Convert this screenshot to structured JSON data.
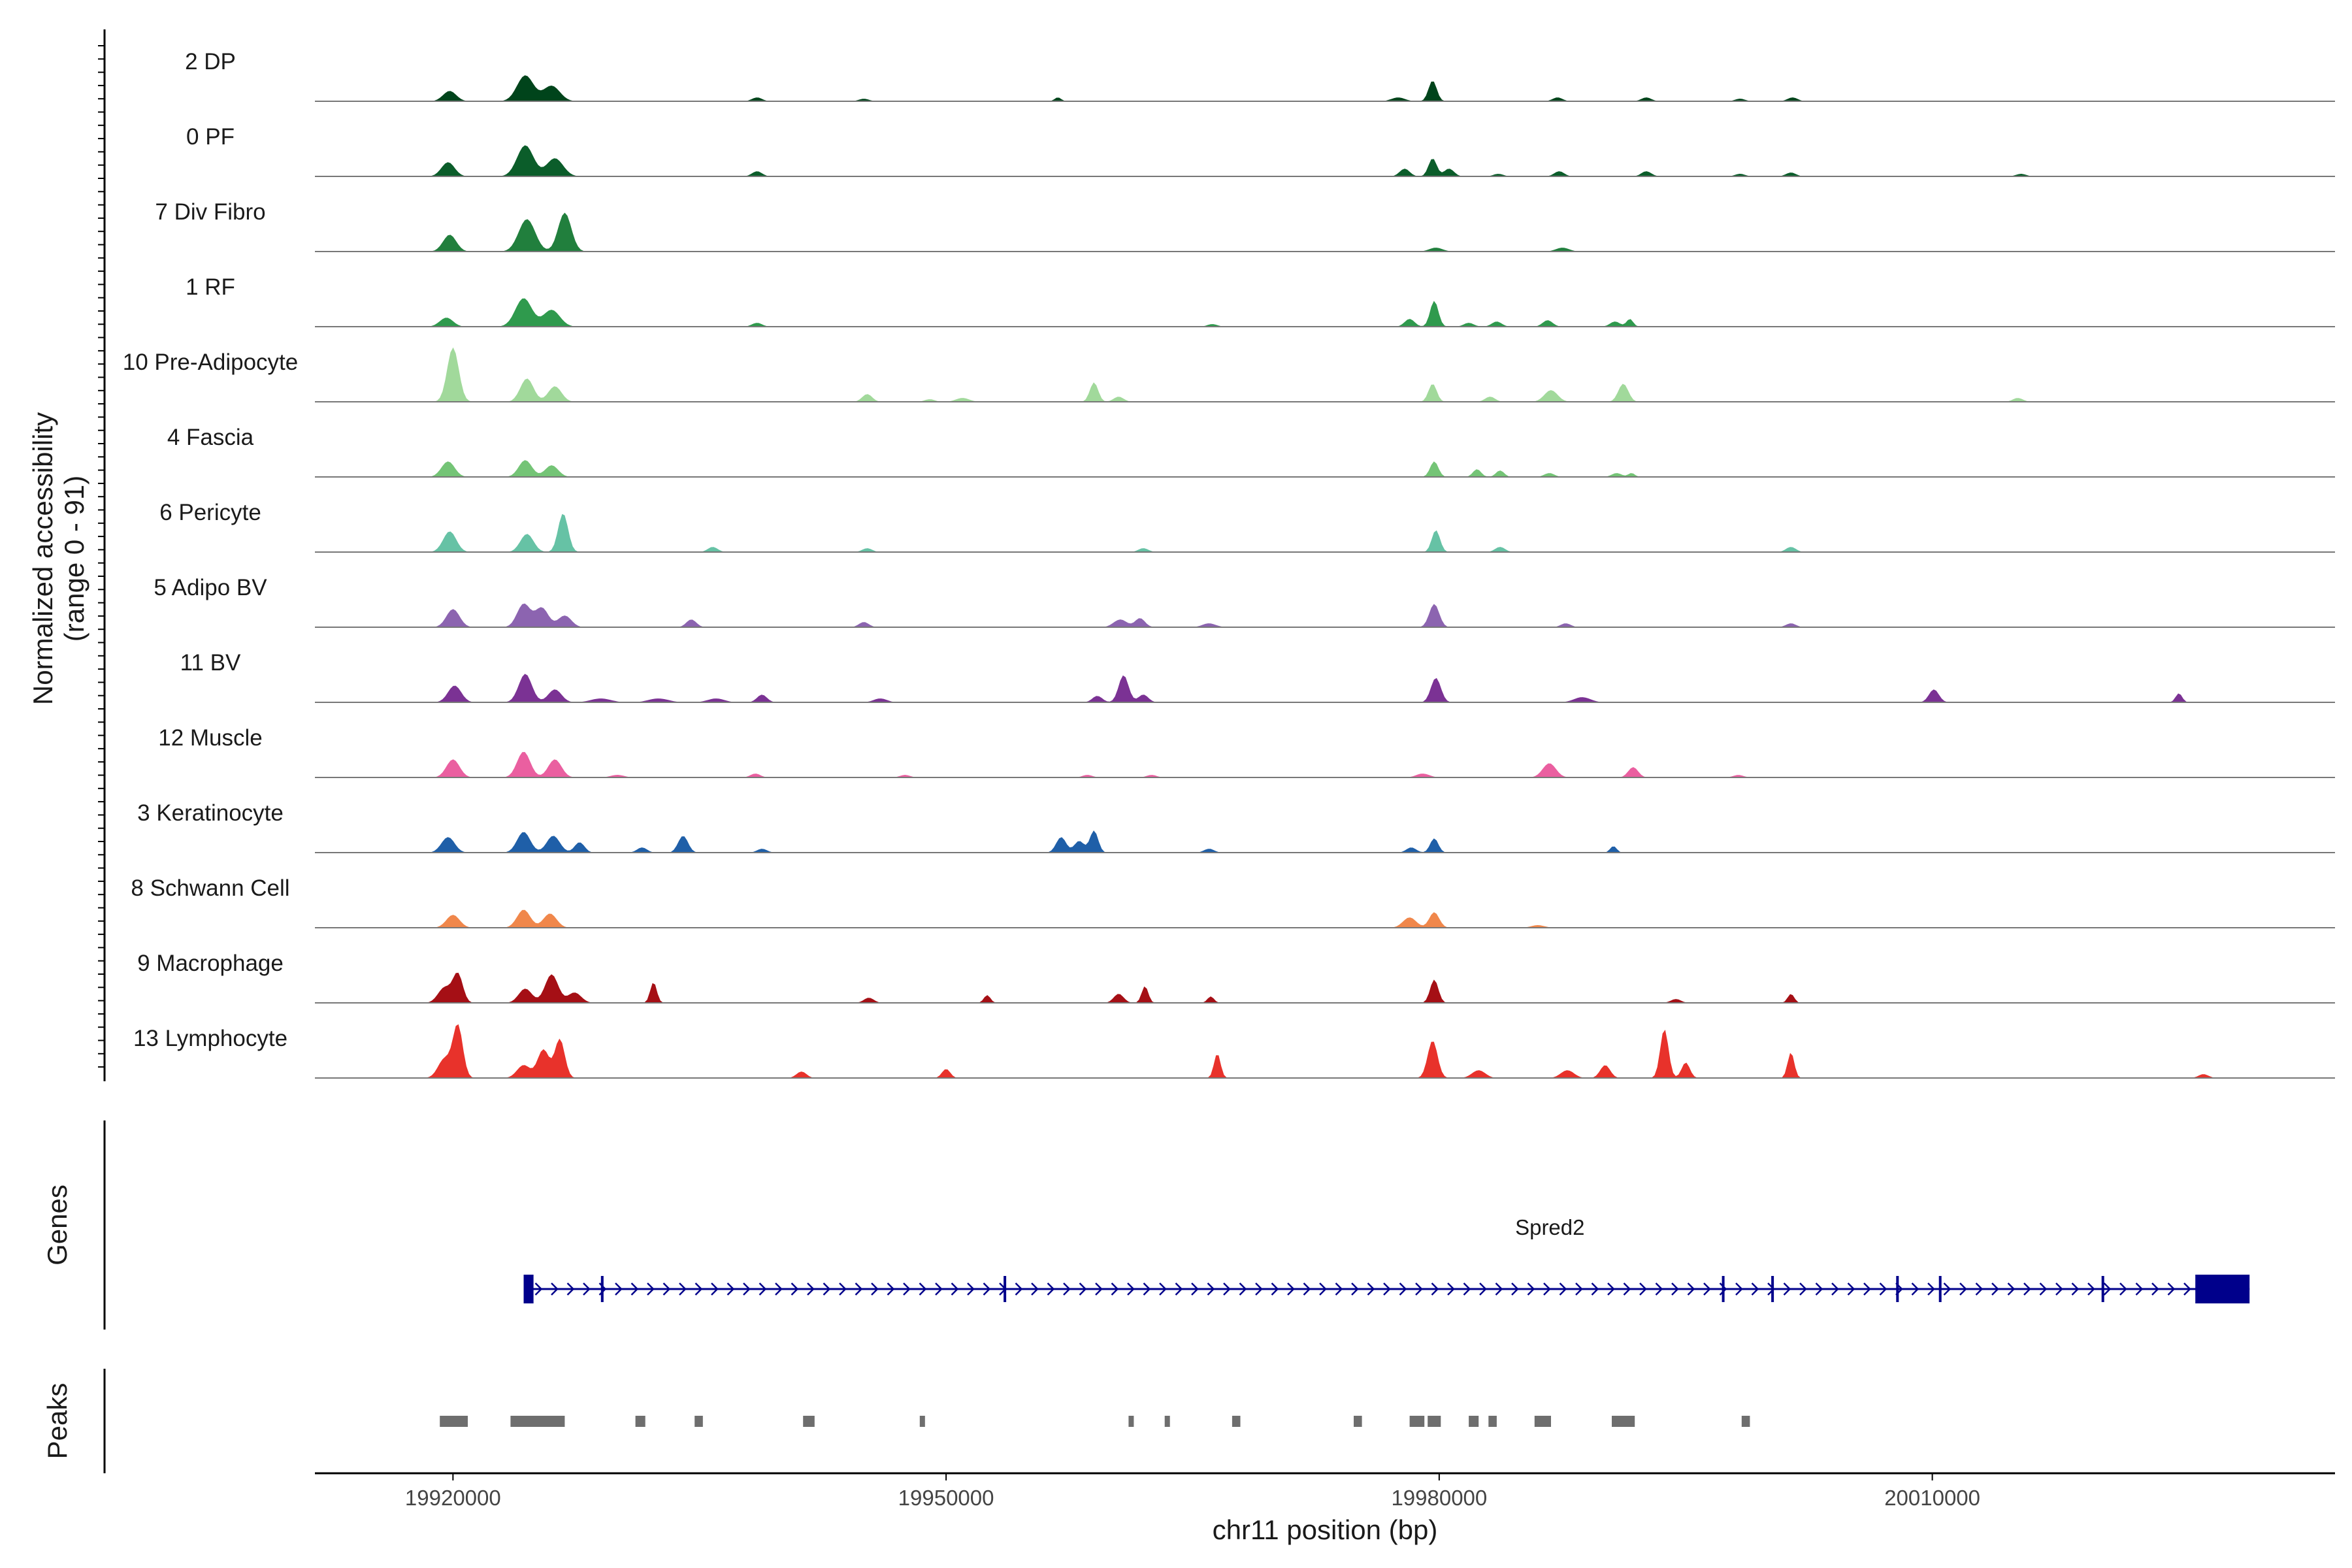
{
  "chart_data": {
    "type": "area",
    "ylabel": "Normalized accessibility",
    "ylabel_range": "(range 0 - 91)",
    "ylim": [
      0,
      91
    ],
    "xlabel": "chr11 position (bp)",
    "xlim": [
      19911600,
      20034500
    ],
    "x_ticks": [
      19920000,
      19950000,
      19980000,
      20010000
    ],
    "x_tick_labels": [
      "19920000",
      "19950000",
      "19980000",
      "20010000"
    ],
    "tracks": [
      {
        "name": "2 DP",
        "color": "#00441b",
        "peaks": [
          [
            19919800,
            8,
            400
          ],
          [
            19924400,
            20,
            500
          ],
          [
            19926000,
            12,
            500
          ],
          [
            19938500,
            3,
            300
          ],
          [
            19945000,
            2,
            300
          ],
          [
            19956800,
            3,
            200
          ],
          [
            19977500,
            3,
            400
          ],
          [
            19979600,
            16,
            250
          ],
          [
            19987200,
            3,
            300
          ],
          [
            19992600,
            3,
            300
          ],
          [
            19998300,
            2,
            300
          ],
          [
            20001500,
            3,
            300
          ]
        ]
      },
      {
        "name": "0 PF",
        "color": "#0b5d2a",
        "peaks": [
          [
            19919700,
            11,
            400
          ],
          [
            19924400,
            24,
            500
          ],
          [
            19926200,
            14,
            500
          ],
          [
            19938500,
            4,
            300
          ],
          [
            19977900,
            6,
            300
          ],
          [
            19979600,
            14,
            250
          ],
          [
            19980600,
            6,
            300
          ],
          [
            19983600,
            2,
            300
          ],
          [
            19987300,
            4,
            300
          ],
          [
            19992600,
            4,
            300
          ],
          [
            19998300,
            2,
            300
          ],
          [
            20001400,
            3,
            300
          ],
          [
            20015400,
            2,
            300
          ]
        ]
      },
      {
        "name": "7 Div Fibro",
        "color": "#217f3d",
        "peaks": [
          [
            19919800,
            13,
            400
          ],
          [
            19924500,
            25,
            500
          ],
          [
            19926800,
            30,
            400
          ],
          [
            19979800,
            3,
            400
          ],
          [
            19987500,
            3,
            400
          ]
        ]
      },
      {
        "name": "1 RF",
        "color": "#2f9a4d",
        "peaks": [
          [
            19919600,
            7,
            400
          ],
          [
            19924300,
            22,
            500
          ],
          [
            19926000,
            13,
            500
          ],
          [
            19938500,
            3,
            300
          ],
          [
            19966200,
            2,
            300
          ],
          [
            19978200,
            6,
            300
          ],
          [
            19979700,
            20,
            250
          ],
          [
            19981800,
            3,
            300
          ],
          [
            19983500,
            4,
            300
          ],
          [
            19986600,
            5,
            300
          ],
          [
            19990700,
            4,
            300
          ],
          [
            19991600,
            6,
            200
          ]
        ]
      },
      {
        "name": "10 Pre-Adipocyte",
        "color": "#a1d99b",
        "peaks": [
          [
            19920000,
            42,
            350
          ],
          [
            19924500,
            18,
            400
          ],
          [
            19926200,
            12,
            400
          ],
          [
            19945200,
            6,
            300
          ],
          [
            19949000,
            2,
            300
          ],
          [
            19951000,
            3,
            400
          ],
          [
            19959000,
            15,
            250
          ],
          [
            19960500,
            4,
            300
          ],
          [
            19979600,
            14,
            250
          ],
          [
            19983100,
            4,
            300
          ],
          [
            19986800,
            9,
            400
          ],
          [
            19991200,
            14,
            300
          ],
          [
            20015200,
            3,
            300
          ]
        ]
      },
      {
        "name": "4 Fascia",
        "color": "#74c476",
        "peaks": [
          [
            19919700,
            12,
            400
          ],
          [
            19924400,
            13,
            400
          ],
          [
            19926000,
            9,
            400
          ],
          [
            19979700,
            12,
            250
          ],
          [
            19982300,
            6,
            250
          ],
          [
            19983700,
            5,
            250
          ],
          [
            19986700,
            3,
            300
          ],
          [
            19990800,
            3,
            300
          ],
          [
            19991700,
            3,
            200
          ]
        ]
      },
      {
        "name": "6 Pericyte",
        "color": "#66c2a5",
        "peaks": [
          [
            19919800,
            16,
            400
          ],
          [
            19924500,
            14,
            400
          ],
          [
            19926700,
            30,
            300
          ],
          [
            19935800,
            4,
            300
          ],
          [
            19945200,
            3,
            300
          ],
          [
            19962000,
            3,
            300
          ],
          [
            19979800,
            17,
            250
          ],
          [
            19983700,
            4,
            300
          ],
          [
            20001400,
            4,
            300
          ]
        ]
      },
      {
        "name": "5 Adipo BV",
        "color": "#8c64b0",
        "peaks": [
          [
            19920000,
            14,
            400
          ],
          [
            19924300,
            18,
            400
          ],
          [
            19925400,
            15,
            400
          ],
          [
            19926800,
            9,
            400
          ],
          [
            19934500,
            6,
            300
          ],
          [
            19945000,
            4,
            300
          ],
          [
            19960600,
            6,
            400
          ],
          [
            19961800,
            7,
            300
          ],
          [
            19966000,
            3,
            400
          ],
          [
            19979700,
            18,
            300
          ],
          [
            19987700,
            3,
            300
          ],
          [
            20001400,
            3,
            300
          ]
        ]
      },
      {
        "name": "11 BV",
        "color": "#7b3294",
        "peaks": [
          [
            19920100,
            13,
            400
          ],
          [
            19924400,
            22,
            400
          ],
          [
            19926200,
            10,
            400
          ],
          [
            19929000,
            3,
            600
          ],
          [
            19932500,
            3,
            600
          ],
          [
            19936000,
            3,
            500
          ],
          [
            19938800,
            6,
            300
          ],
          [
            19946000,
            3,
            400
          ],
          [
            19959200,
            5,
            300
          ],
          [
            19960800,
            21,
            300
          ],
          [
            19962000,
            6,
            300
          ],
          [
            19979800,
            19,
            300
          ],
          [
            19988700,
            4,
            500
          ],
          [
            20010100,
            10,
            300
          ],
          [
            20025000,
            7,
            200
          ]
        ]
      },
      {
        "name": "12 Muscle",
        "color": "#ea5fa0",
        "peaks": [
          [
            19920000,
            14,
            400
          ],
          [
            19924300,
            20,
            400
          ],
          [
            19926200,
            14,
            400
          ],
          [
            19930000,
            2,
            400
          ],
          [
            19938400,
            3,
            300
          ],
          [
            19947500,
            2,
            300
          ],
          [
            19958600,
            2,
            300
          ],
          [
            19962500,
            2,
            300
          ],
          [
            19979000,
            3,
            400
          ],
          [
            19986700,
            11,
            400
          ],
          [
            19991800,
            8,
            300
          ],
          [
            19998200,
            2,
            300
          ]
        ]
      },
      {
        "name": "3 Keratinocyte",
        "color": "#1f5fa8",
        "peaks": [
          [
            19919700,
            12,
            400
          ],
          [
            19924300,
            16,
            400
          ],
          [
            19926100,
            13,
            400
          ],
          [
            19927700,
            8,
            300
          ],
          [
            19931500,
            4,
            300
          ],
          [
            19934000,
            13,
            300
          ],
          [
            19938800,
            3,
            300
          ],
          [
            19957000,
            12,
            300
          ],
          [
            19958100,
            9,
            300
          ],
          [
            19959000,
            17,
            250
          ],
          [
            19966000,
            3,
            300
          ],
          [
            19978300,
            4,
            300
          ],
          [
            19979700,
            11,
            250
          ],
          [
            19990600,
            5,
            200
          ]
        ]
      },
      {
        "name": "8 Schwann Cell",
        "color": "#f0874b",
        "peaks": [
          [
            19920000,
            10,
            400
          ],
          [
            19924300,
            14,
            400
          ],
          [
            19925900,
            11,
            400
          ],
          [
            19978200,
            8,
            400
          ],
          [
            19979700,
            12,
            300
          ],
          [
            19986000,
            2,
            400
          ]
        ]
      },
      {
        "name": "9 Macrophage",
        "color": "#a50f15",
        "peaks": [
          [
            19919500,
            12,
            400
          ],
          [
            19920300,
            22,
            300
          ],
          [
            19924400,
            11,
            400
          ],
          [
            19926000,
            22,
            400
          ],
          [
            19927400,
            8,
            400
          ],
          [
            19932200,
            16,
            200
          ],
          [
            19945300,
            4,
            300
          ],
          [
            19952500,
            6,
            200
          ],
          [
            19960500,
            7,
            300
          ],
          [
            19962100,
            13,
            200
          ],
          [
            19966100,
            5,
            200
          ],
          [
            19979700,
            18,
            250
          ],
          [
            19994400,
            3,
            300
          ],
          [
            20001400,
            7,
            200
          ]
        ]
      },
      {
        "name": "13 Lymphocyte",
        "color": "#e8322b",
        "peaks": [
          [
            19919500,
            15,
            400
          ],
          [
            19920300,
            40,
            300
          ],
          [
            19924300,
            10,
            400
          ],
          [
            19925500,
            22,
            350
          ],
          [
            19926500,
            30,
            300
          ],
          [
            19941200,
            5,
            300
          ],
          [
            19950000,
            7,
            250
          ],
          [
            19966500,
            19,
            200
          ],
          [
            19979600,
            29,
            300
          ],
          [
            19982400,
            6,
            400
          ],
          [
            19987800,
            6,
            400
          ],
          [
            19990100,
            10,
            300
          ],
          [
            19993700,
            38,
            250
          ],
          [
            19995000,
            12,
            250
          ],
          [
            20001400,
            20,
            200
          ],
          [
            20026500,
            3,
            300
          ]
        ]
      }
    ],
    "genes": {
      "label": "Genes",
      "name": "Spred2",
      "color": "#00008b",
      "start": 19924300,
      "end": 20029300,
      "strand": "+",
      "exons": [
        [
          19924300,
          19924900
        ],
        [
          19929000,
          19929100
        ],
        [
          19953500,
          19953600
        ],
        [
          19997200,
          19997300
        ],
        [
          20000200,
          20000300
        ],
        [
          20007800,
          20007900
        ],
        [
          20010400,
          20010500
        ],
        [
          20020300,
          20020400
        ],
        [
          20026000,
          20029300
        ]
      ]
    },
    "peaks_track": {
      "label": "Peaks",
      "color": "#6e6e6e",
      "regions": [
        [
          19919200,
          19920900
        ],
        [
          19923500,
          19926800
        ],
        [
          19931100,
          19931700
        ],
        [
          19934700,
          19935200
        ],
        [
          19941300,
          19942000
        ],
        [
          19948400,
          19948700
        ],
        [
          19961100,
          19961200
        ],
        [
          19963300,
          19963600
        ],
        [
          19967400,
          19967900
        ],
        [
          19974800,
          19975300
        ],
        [
          19978200,
          19979100
        ],
        [
          19979300,
          19980100
        ],
        [
          19981800,
          19982400
        ],
        [
          19983000,
          19983500
        ],
        [
          19985800,
          19986800
        ],
        [
          19990500,
          19991900
        ],
        [
          19998400,
          19998900
        ]
      ]
    }
  }
}
